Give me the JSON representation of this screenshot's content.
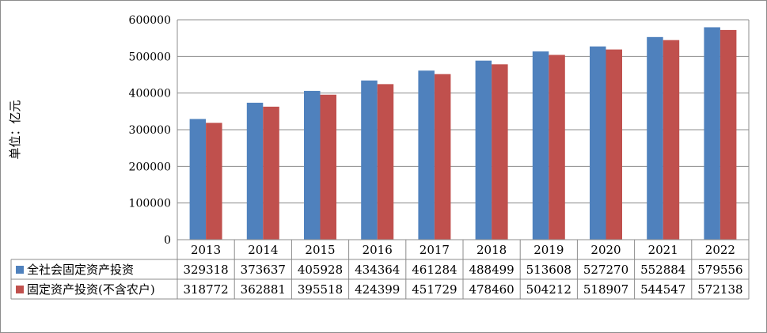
{
  "chart_data": {
    "type": "bar",
    "ylabel": "单位：亿元",
    "categories": [
      "2013",
      "2014",
      "2015",
      "2016",
      "2017",
      "2018",
      "2019",
      "2020",
      "2021",
      "2022"
    ],
    "ylim": [
      0,
      600000
    ],
    "yticks": [
      0,
      100000,
      200000,
      300000,
      400000,
      500000,
      600000
    ],
    "grid": true,
    "legend": "data-table",
    "series": [
      {
        "table_label": "全社会固定资产投资",
        "color": "#4f81bd",
        "values": [
          329318,
          373637,
          405928,
          434364,
          461284,
          488499,
          513608,
          527270,
          552884,
          579556
        ]
      },
      {
        "table_label": "固定资产投资(不含农户)",
        "color": "#c0504d",
        "values": [
          318772,
          362881,
          395518,
          424399,
          451729,
          478460,
          504212,
          518907,
          544547,
          572138
        ]
      }
    ]
  }
}
